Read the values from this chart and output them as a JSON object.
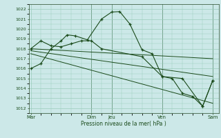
{
  "bg_color": "#cce8e8",
  "grid_color": "#99ccbb",
  "line_color": "#1a4a1a",
  "xlabel": "Pression niveau de la mer( hPa )",
  "ylim": [
    1011.5,
    1022.5
  ],
  "xlim": [
    -0.1,
    9.3
  ],
  "vlines": [
    3.0,
    4.0,
    6.5,
    9.0
  ],
  "xtick_pos": [
    0,
    3.0,
    4.0,
    6.5,
    9.0
  ],
  "xtick_labels": [
    "Mar",
    "Dim",
    "Jeu",
    "Ven",
    "Sam"
  ],
  "series1": {
    "x": [
      0,
      0.5,
      1.0,
      1.5,
      1.8,
      2.2,
      2.8,
      3.5,
      4.0,
      4.4,
      4.9,
      5.5,
      6.0,
      6.5,
      7.0,
      7.5,
      8.0,
      8.5,
      9.0
    ],
    "y": [
      1016.0,
      1016.5,
      1018.0,
      1018.8,
      1019.4,
      1019.3,
      1018.9,
      1021.0,
      1021.7,
      1021.75,
      1020.5,
      1017.9,
      1017.5,
      1015.2,
      1015.0,
      1013.5,
      1013.2,
      1012.2,
      1014.8
    ]
  },
  "series2": {
    "x": [
      0,
      0.5,
      1.0,
      1.5,
      2.0,
      2.5,
      3.0,
      3.5,
      5.5,
      6.5,
      7.5,
      8.5,
      9.0
    ],
    "y": [
      1018.0,
      1018.8,
      1018.3,
      1018.2,
      1018.5,
      1018.8,
      1018.8,
      1018.0,
      1017.2,
      1015.2,
      1015.0,
      1012.2,
      1014.8
    ]
  },
  "line3": {
    "x": [
      0,
      9.0
    ],
    "y": [
      1018.0,
      1017.0
    ]
  },
  "line4": {
    "x": [
      0,
      9.0
    ],
    "y": [
      1017.8,
      1015.2
    ]
  },
  "line5": {
    "x": [
      0,
      9.0
    ],
    "y": [
      1017.5,
      1012.5
    ]
  }
}
